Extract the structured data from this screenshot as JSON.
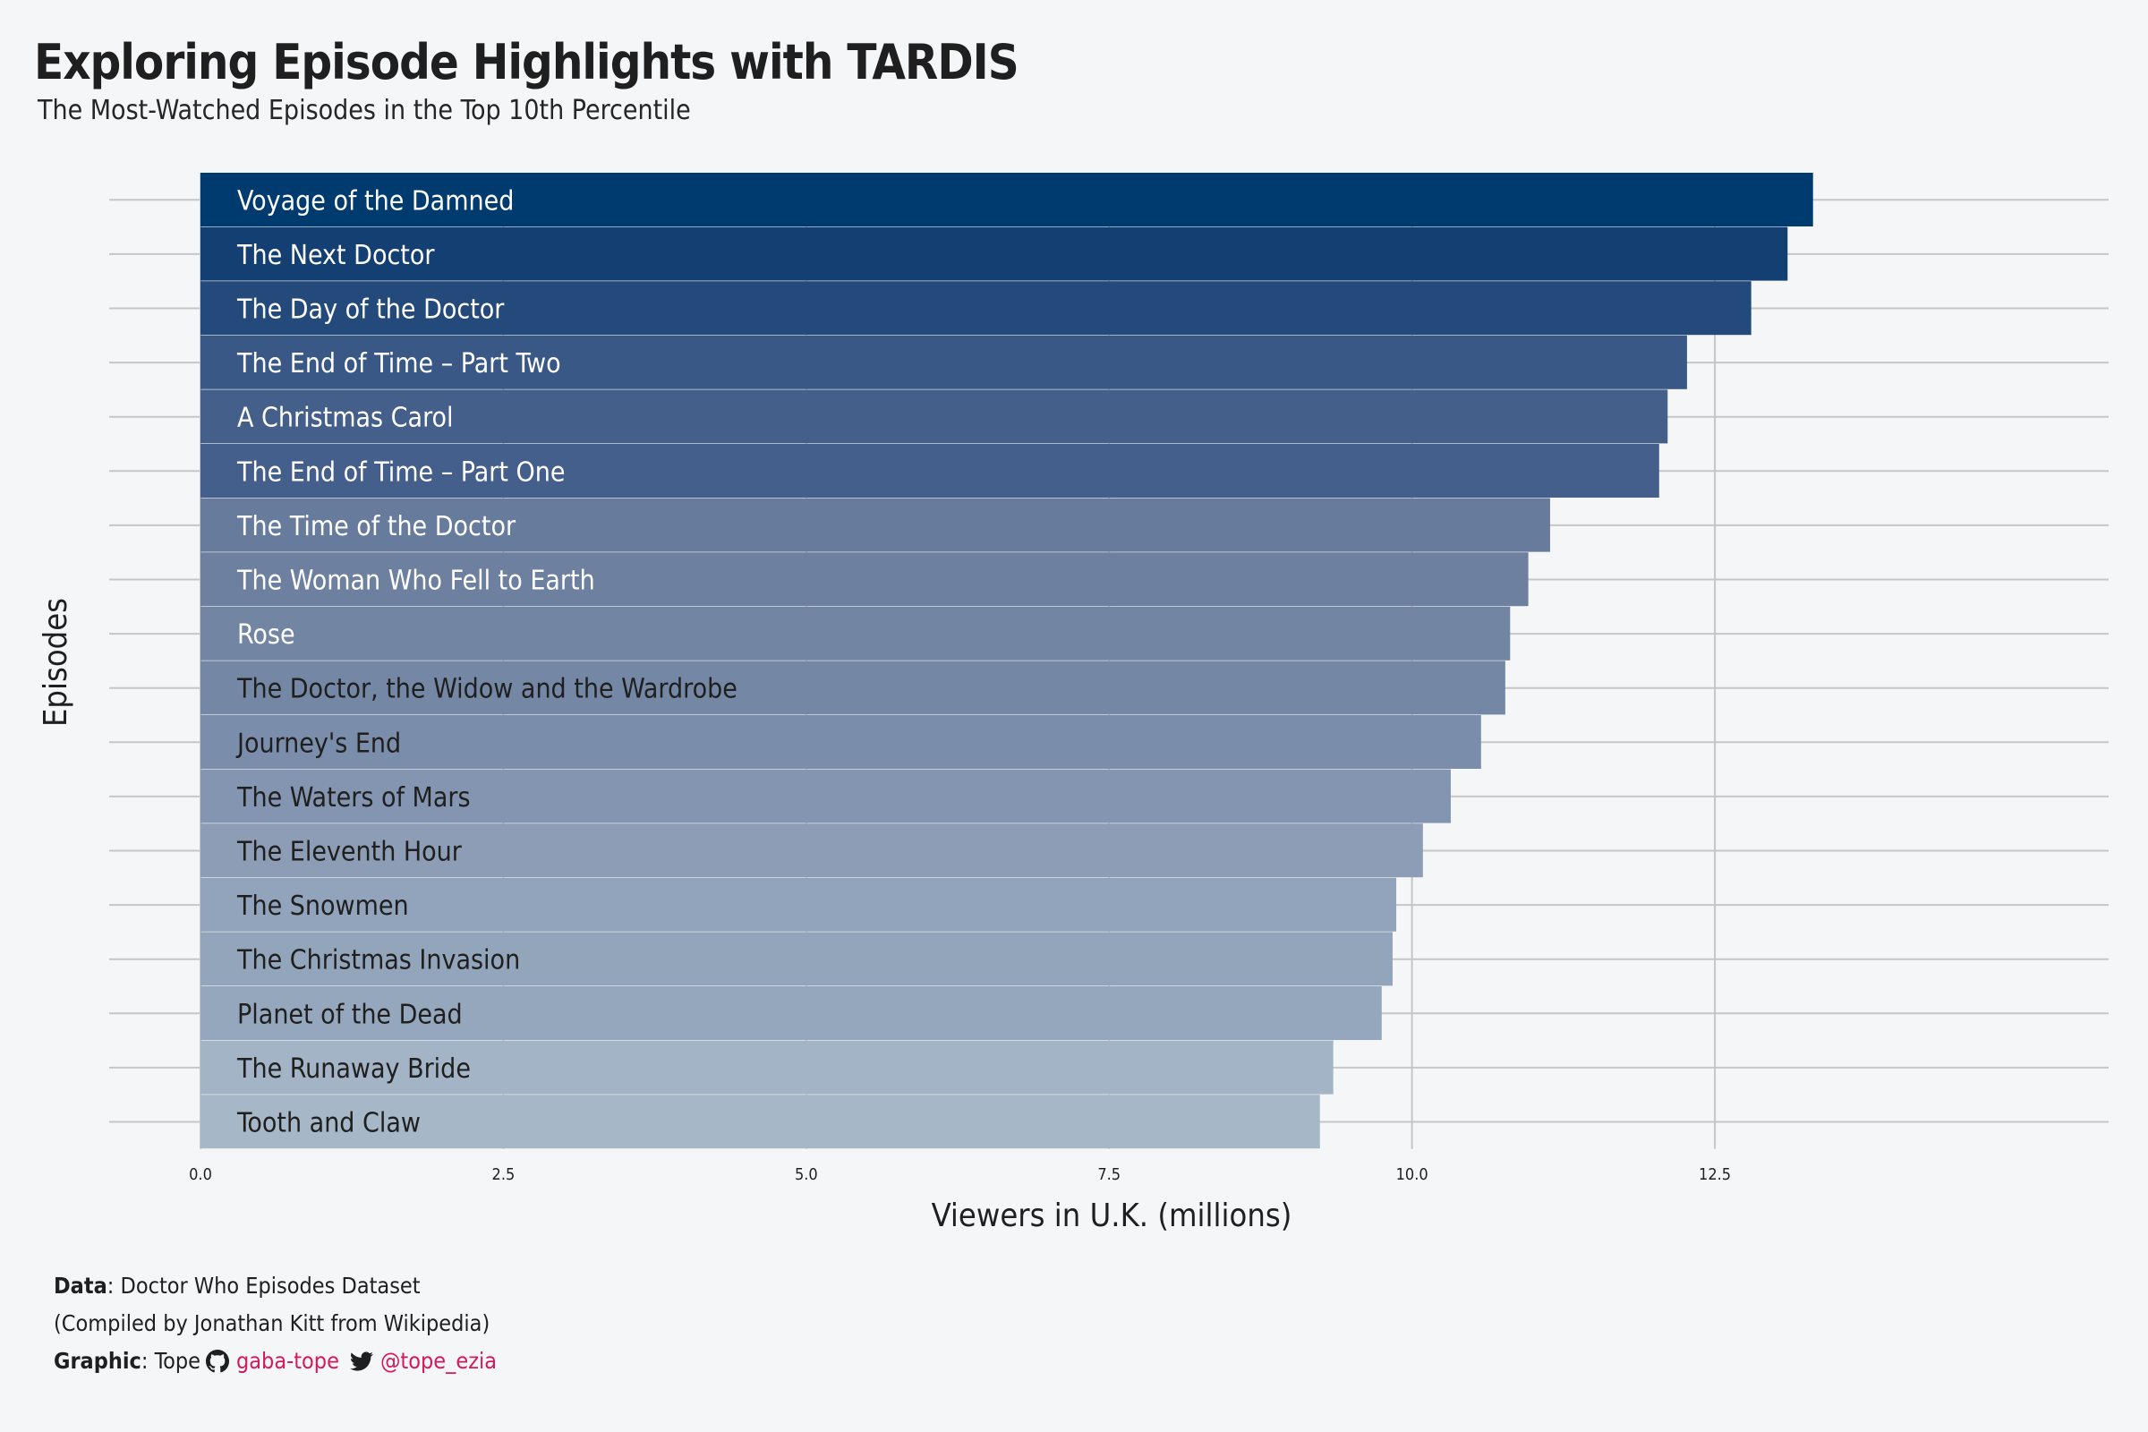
{
  "title": "Exploring Episode Highlights with TARDIS",
  "subtitle": "The Most-Watched Episodes in the Top 10th Percentile",
  "caption": {
    "data_label": "Data",
    "data_text": ": Doctor Who Episodes Dataset",
    "compiled_text": "(Compiled by Jonathan Kitt from Wikipedia)",
    "graphic_label": "Graphic",
    "graphic_text": ": Tope",
    "github_handle": "gaba-tope",
    "twitter_handle": "@tope_ezia",
    "link_color": "#d6195f"
  },
  "chart_data": {
    "type": "bar",
    "orientation": "horizontal",
    "xlabel": "Viewers in U.K. (millions)",
    "ylabel": "Episodes",
    "xlim": [
      0,
      15.75
    ],
    "xticks": [
      "0.0",
      "2.5",
      "5.0",
      "7.5",
      "10.0",
      "12.5"
    ],
    "xtick_values": [
      0,
      2.5,
      5,
      7.5,
      10,
      12.5
    ],
    "grid": true,
    "categories": [
      "Voyage of the Damned",
      "The Next Doctor",
      "The Day of the Doctor",
      "The End of Time – Part Two",
      "A Christmas Carol",
      "The End of Time – Part One",
      "The Time of the Doctor",
      "The Woman Who Fell to Earth",
      "Rose",
      "The Doctor, the Widow and the Wardrobe",
      "Journey's End",
      "The Waters of Mars",
      "The Eleventh Hour",
      "The Snowmen",
      "The Christmas Invasion",
      "Planet of the Dead",
      "The Runaway Bride",
      "Tooth and Claw"
    ],
    "values": [
      13.31,
      13.1,
      12.8,
      12.27,
      12.11,
      12.04,
      11.14,
      10.96,
      10.81,
      10.77,
      10.57,
      10.32,
      10.09,
      9.87,
      9.84,
      9.75,
      9.35,
      9.24
    ],
    "colors": [
      "#003b6f",
      "#133f73",
      "#244a7c",
      "#3a5885",
      "#435f8a",
      "#445f8b",
      "#677b9d",
      "#6e809f",
      "#7286a4",
      "#7488a6",
      "#7a8dab",
      "#8495b1",
      "#8c9db5",
      "#92a4bb",
      "#93a5bb",
      "#95a7bd",
      "#a3b4c6",
      "#a6b7c7"
    ],
    "label_colors": [
      "#ffffff",
      "#ffffff",
      "#ffffff",
      "#ffffff",
      "#ffffff",
      "#ffffff",
      "#ffffff",
      "#ffffff",
      "#ffffff",
      "#1f1f1f",
      "#1f1f1f",
      "#1f1f1f",
      "#1f1f1f",
      "#1f1f1f",
      "#1f1f1f",
      "#1f1f1f",
      "#1f1f1f",
      "#1f1f1f"
    ],
    "gridline_color": "#c6c6c6",
    "legend": "none"
  }
}
